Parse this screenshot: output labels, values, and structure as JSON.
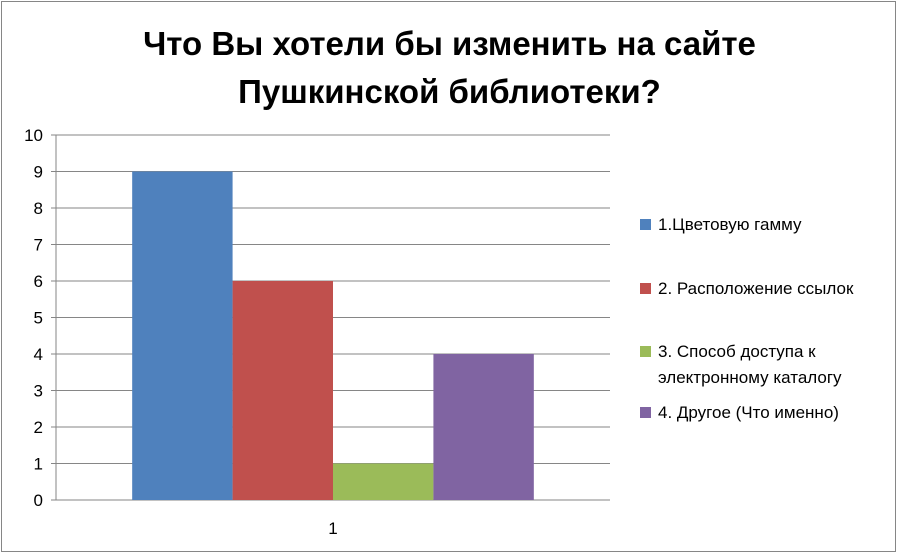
{
  "chart_data": {
    "type": "bar",
    "title_lines": [
      "Что Вы хотели бы изменить на сайте",
      "Пушкинской библиотеки?"
    ],
    "categories": [
      "1"
    ],
    "series": [
      {
        "name": "1.Цветовую гамму",
        "values": [
          9
        ],
        "color": "#4F81BD"
      },
      {
        "name": "2. Расположение ссылок",
        "values": [
          6
        ],
        "color": "#C0504D"
      },
      {
        "name": "3. Способ доступа к электронному каталогу",
        "values": [
          1
        ],
        "color": "#9BBB59"
      },
      {
        "name": "4.  Другое (Что именно)",
        "values": [
          4
        ],
        "color": "#8064A2"
      }
    ],
    "y_ticks": [
      "0",
      "1",
      "2",
      "3",
      "4",
      "5",
      "6",
      "7",
      "8",
      "9",
      "10"
    ],
    "ylim": [
      0,
      10
    ],
    "grid": true,
    "legend_position": "right"
  },
  "legend": {
    "item1": "1.Цветовую гамму",
    "item2": "2. Расположение ссылок",
    "item3_line1": "3. Способ доступа к",
    "item3_line2": "электронному каталогу",
    "item4": "4.  Другое (Что именно)"
  }
}
